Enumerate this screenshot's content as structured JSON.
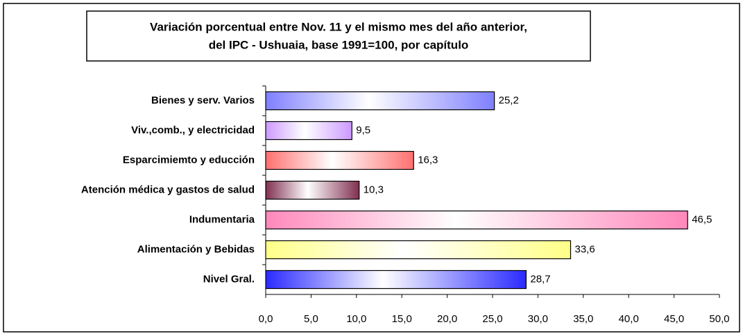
{
  "chart_data": {
    "type": "barh",
    "title": [
      "Variación porcentual entre Nov. 11 y el mismo  mes del año anterior,",
      "del IPC - Ushuaia, base 1991=100, por capítulo"
    ],
    "categories": [
      "Bienes y serv. Varios",
      "Viv.,comb., y electricidad",
      "Esparcimiemto y educción",
      "Atención médica y gastos de salud",
      "Indumentaria",
      "Alimentación y Bebidas",
      "Nivel Gral."
    ],
    "values": [
      25.2,
      9.5,
      16.3,
      10.3,
      46.5,
      33.6,
      28.7
    ],
    "value_labels": [
      "25,2",
      "9,5",
      "16,3",
      "10,3",
      "46,5",
      "33,6",
      "28,7"
    ],
    "colors": [
      "#7f7fff",
      "#cc99ff",
      "#ff7070",
      "#803050",
      "#ff88bb",
      "#ffff88",
      "#2a2aff"
    ],
    "xlim": [
      0,
      50
    ],
    "xticks": [
      {
        "value": 0,
        "label": "0,0"
      },
      {
        "value": 5,
        "label": "5,0"
      },
      {
        "value": 10,
        "label": "10,0"
      },
      {
        "value": 15,
        "label": "15,0"
      },
      {
        "value": 20,
        "label": "20,0"
      },
      {
        "value": 25,
        "label": "25,0"
      },
      {
        "value": 30,
        "label": "30,0"
      },
      {
        "value": 35,
        "label": "35,0"
      },
      {
        "value": 40,
        "label": "40,0"
      },
      {
        "value": 45,
        "label": "45,0"
      },
      {
        "value": 50,
        "label": "50,0"
      }
    ]
  }
}
